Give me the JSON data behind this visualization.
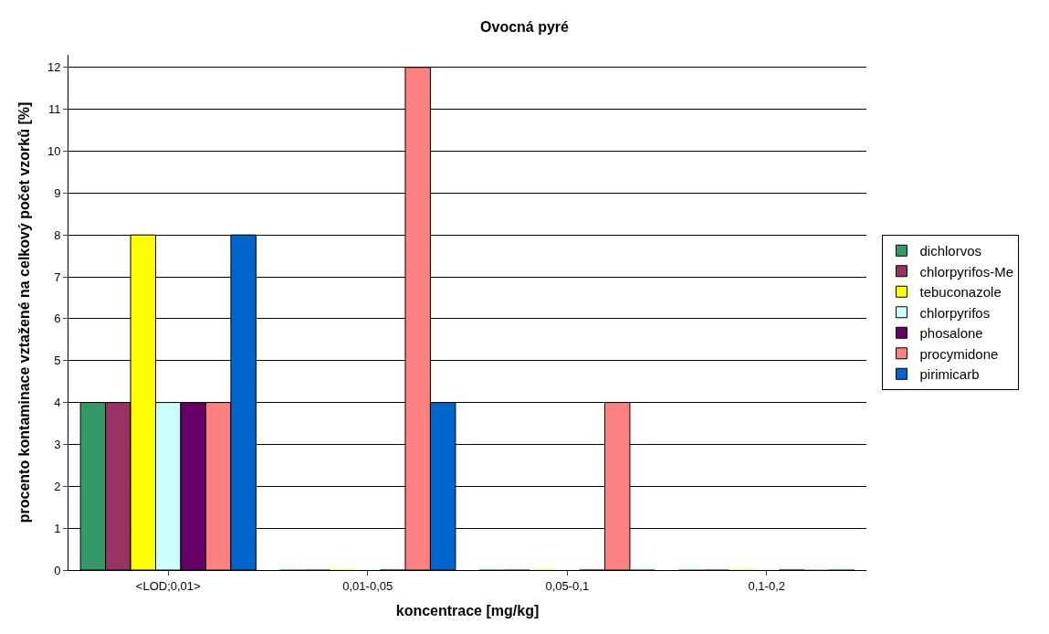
{
  "chart_data": {
    "type": "bar",
    "title": "Ovocná pyré",
    "xlabel": "koncentrace [mg/kg]",
    "ylabel": "procento kontaminace vztažené na celkový počet vzorků [%]",
    "categories": [
      "<LOD;0,01>",
      "0,01-0,05",
      "0,05-0,1",
      "0,1-0,2"
    ],
    "series": [
      {
        "name": "dichlorvos",
        "color": "#339966",
        "values": [
          4,
          0,
          0,
          0
        ]
      },
      {
        "name": "chlorpyrifos-Me",
        "color": "#993366",
        "values": [
          4,
          0,
          0,
          0
        ]
      },
      {
        "name": "tebuconazole",
        "color": "#ffff00",
        "values": [
          8,
          0,
          0,
          0
        ]
      },
      {
        "name": "chlorpyrifos",
        "color": "#ccffff",
        "values": [
          4,
          0,
          0,
          0
        ]
      },
      {
        "name": "phosalone",
        "color": "#660066",
        "values": [
          4,
          0,
          0,
          0
        ]
      },
      {
        "name": "procymidone",
        "color": "#ff8080",
        "values": [
          4,
          12,
          4,
          0
        ]
      },
      {
        "name": "pirimicarb",
        "color": "#0066cc",
        "values": [
          8,
          4,
          0,
          0
        ]
      }
    ],
    "ylim": [
      0,
      12.3
    ],
    "yticks": [
      0,
      1,
      2,
      3,
      4,
      5,
      6,
      7,
      8,
      9,
      10,
      11,
      12
    ],
    "grid": "y",
    "legend": "right"
  }
}
